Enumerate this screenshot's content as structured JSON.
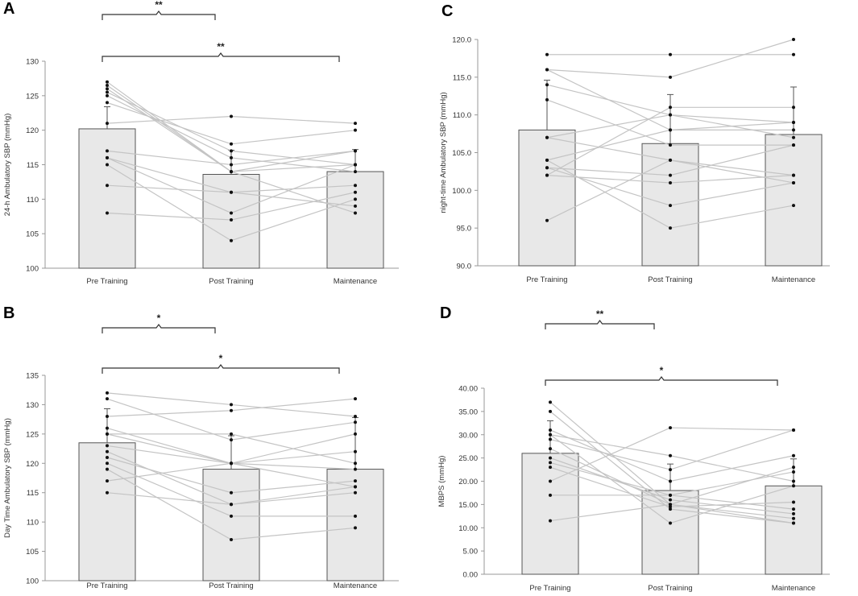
{
  "chart_data": [
    {
      "panel": "A",
      "type": "bar",
      "categories": [
        "Pre Training",
        "Post Training",
        "Maintenance"
      ],
      "values": [
        120.2,
        113.6,
        114.0
      ],
      "error": [
        3.2,
        3.5,
        3.2
      ],
      "ylabel": "24-h Ambulatory SBP (mmHg)",
      "ylim": [
        100,
        130
      ],
      "yticks": [
        "100",
        "105",
        "110",
        "115",
        "120",
        "125",
        "130"
      ],
      "subjects": [
        [
          127,
          114,
          108
        ],
        [
          126,
          114,
          117
        ],
        [
          125.5,
          117,
          115
        ],
        [
          125,
          116,
          114
        ],
        [
          124,
          118,
          120
        ],
        [
          121,
          122,
          121
        ],
        [
          117,
          115,
          117
        ],
        [
          116,
          111,
          112
        ],
        [
          115,
          104,
          110
        ],
        [
          112,
          111,
          109
        ],
        [
          108,
          107,
          111
        ],
        [
          126.5,
          114,
          115
        ],
        [
          116,
          108,
          115
        ]
      ],
      "brackets": [
        {
          "from": 0,
          "to": 1,
          "label": "**"
        },
        {
          "from": 0,
          "to": 2,
          "label": "**"
        }
      ]
    },
    {
      "panel": "B",
      "type": "bar",
      "categories": [
        "Pre Training",
        "Post Training",
        "Maintenance"
      ],
      "values": [
        123.5,
        119.0,
        119.0
      ],
      "error": [
        5.8,
        5.7,
        8.8
      ],
      "ylabel": "Day Time Ambulatory SBP (mmHg)",
      "ylim": [
        100,
        135
      ],
      "yticks": [
        "100",
        "105",
        "110",
        "115",
        "120",
        "125",
        "130",
        "135"
      ],
      "subjects": [
        [
          132,
          130,
          128
        ],
        [
          131,
          124,
          127
        ],
        [
          128,
          129,
          131
        ],
        [
          126,
          120,
          122
        ],
        [
          125,
          125,
          120
        ],
        [
          123,
          120,
          119
        ],
        [
          122,
          113,
          116
        ],
        [
          121,
          115,
          117
        ],
        [
          120,
          111,
          111
        ],
        [
          117,
          120,
          116
        ],
        [
          115,
          113,
          115
        ],
        [
          119,
          107,
          109
        ],
        [
          125,
          120,
          125
        ]
      ],
      "brackets": [
        {
          "from": 0,
          "to": 1,
          "label": "*"
        },
        {
          "from": 0,
          "to": 2,
          "label": "*"
        }
      ]
    },
    {
      "panel": "C",
      "type": "bar",
      "categories": [
        "Pre Training",
        "Post Training",
        "Maintenance"
      ],
      "values": [
        108.0,
        106.2,
        107.4
      ],
      "error": [
        6.6,
        6.5,
        6.3
      ],
      "ylabel": "night-time Ambulatory SBP (mmHg)",
      "ylim": [
        90.0,
        120.0
      ],
      "yticks": [
        "90.0",
        "95.0",
        "100.0",
        "105.0",
        "110.0",
        "115.0",
        "120.0"
      ],
      "subjects": [
        [
          118,
          118,
          118
        ],
        [
          116,
          115,
          120
        ],
        [
          114,
          110,
          107
        ],
        [
          112,
          106,
          106
        ],
        [
          107,
          110,
          109
        ],
        [
          107,
          104,
          102
        ],
        [
          104,
          108,
          109
        ],
        [
          103,
          98,
          101
        ],
        [
          102,
          101,
          102
        ],
        [
          102,
          111,
          111
        ],
        [
          96,
          104,
          101
        ],
        [
          116,
          108,
          108
        ],
        [
          104,
          95,
          98
        ],
        [
          103,
          102,
          106
        ]
      ],
      "brackets": []
    },
    {
      "panel": "D",
      "type": "bar",
      "categories": [
        "Pre Training",
        "Post Training",
        "Maintenance"
      ],
      "values": [
        26.0,
        18.0,
        19.0
      ],
      "error": [
        7.0,
        5.7,
        5.8
      ],
      "ylabel": "MBPS (mmHg)",
      "ylim": [
        0.0,
        40.0
      ],
      "yticks": [
        "0.00",
        "5.00",
        "10.00",
        "15.00",
        "20.00",
        "25.00",
        "30.00",
        "35.00",
        "40.00"
      ],
      "subjects": [
        [
          37,
          15,
          12
        ],
        [
          35,
          14,
          11
        ],
        [
          31,
          20,
          25.5
        ],
        [
          30,
          25.5,
          20
        ],
        [
          29,
          22.5,
          31
        ],
        [
          27,
          15,
          23
        ],
        [
          25,
          16,
          13
        ],
        [
          24,
          17,
          14
        ],
        [
          23,
          14.5,
          15.5
        ],
        [
          20,
          31.5,
          31
        ],
        [
          17,
          17,
          22
        ],
        [
          11.5,
          15,
          11
        ],
        [
          30,
          11,
          19
        ]
      ],
      "brackets": [
        {
          "from": 0,
          "to": 1,
          "label": "**"
        },
        {
          "from": 0,
          "to": 2,
          "label": "*"
        }
      ]
    }
  ],
  "panel_labels": {
    "A": "A",
    "B": "B",
    "C": "C",
    "D": "D"
  },
  "colors": {
    "bar_fill": "#e8e8e8",
    "bar_stroke": "#555555",
    "line": "#c4c4c4",
    "dot": "#111111",
    "axis": "#999999"
  }
}
